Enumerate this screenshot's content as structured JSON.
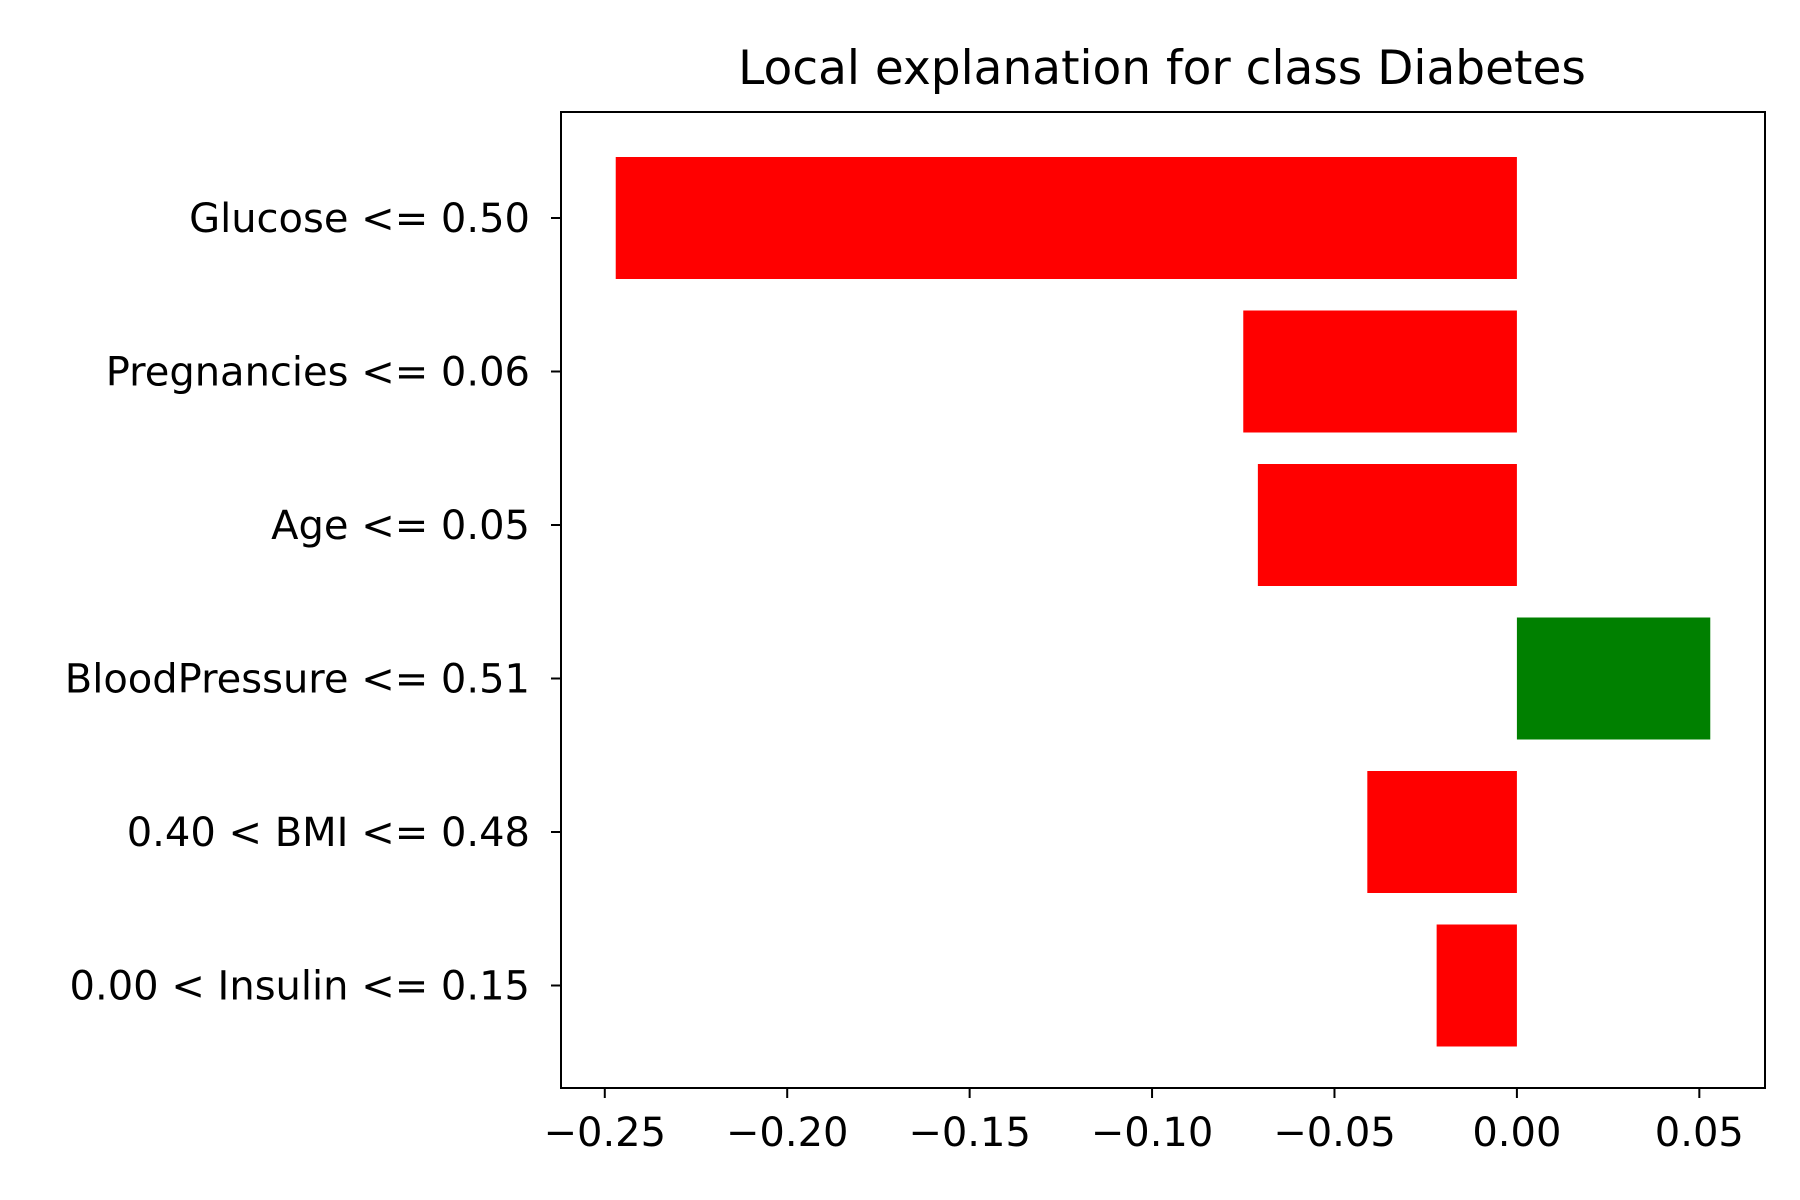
{
  "chart_data": {
    "type": "bar",
    "orientation": "horizontal",
    "title": "Local explanation for class Diabetes",
    "xlabel": "",
    "ylabel": "",
    "categories": [
      "Glucose <= 0.50",
      "Pregnancies <= 0.06",
      "Age <= 0.05",
      "BloodPressure <= 0.51",
      "0.40 < BMI <= 0.48",
      "0.00 < Insulin <= 0.15"
    ],
    "values": [
      -0.247,
      -0.075,
      -0.071,
      0.053,
      -0.041,
      -0.022
    ],
    "xlim": [
      -0.262,
      0.068
    ],
    "xticks": [
      -0.25,
      -0.2,
      -0.15,
      -0.1,
      -0.05,
      0.0,
      0.05
    ],
    "xtick_labels": [
      "−0.25",
      "−0.20",
      "−0.15",
      "−0.10",
      "−0.05",
      "0.00",
      "0.05"
    ],
    "grid": false,
    "colors": {
      "negative": "#ff0000",
      "positive": "#008000",
      "axis": "#000000"
    }
  }
}
